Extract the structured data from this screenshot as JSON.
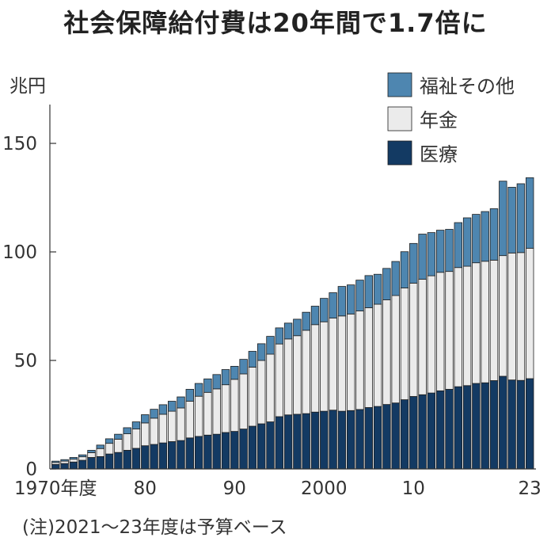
{
  "chart_data": {
    "type": "bar",
    "stacked": true,
    "title": "社会保障給付費は20年間で1.7倍に",
    "ylabel": "兆円",
    "ylim": [
      0,
      165
    ],
    "yticks": [
      0,
      50,
      100,
      150
    ],
    "x_tick_labels": [
      {
        "year": 1970,
        "label": "1970年度"
      },
      {
        "year": 1980,
        "label": "80"
      },
      {
        "year": 1990,
        "label": "90"
      },
      {
        "year": 2000,
        "label": "2000"
      },
      {
        "year": 2010,
        "label": "10"
      },
      {
        "year": 2023,
        "label": "23"
      }
    ],
    "x": [
      1970,
      1971,
      1972,
      1973,
      1974,
      1975,
      1976,
      1977,
      1978,
      1979,
      1980,
      1981,
      1982,
      1983,
      1984,
      1985,
      1986,
      1987,
      1988,
      1989,
      1990,
      1991,
      1992,
      1993,
      1994,
      1995,
      1996,
      1997,
      1998,
      1999,
      2000,
      2001,
      2002,
      2003,
      2004,
      2005,
      2006,
      2007,
      2008,
      2009,
      2010,
      2011,
      2012,
      2013,
      2014,
      2015,
      2016,
      2017,
      2018,
      2019,
      2020,
      2021,
      2022,
      2023
    ],
    "series": [
      {
        "name": "医療",
        "color": "#133a63",
        "values": [
          2.1,
          2.5,
          3.2,
          4.0,
          5.3,
          5.7,
          6.9,
          7.6,
          8.6,
          9.5,
          10.7,
          11.3,
          12.0,
          12.6,
          13.1,
          14.3,
          15.0,
          15.6,
          16.0,
          16.8,
          17.3,
          18.4,
          19.7,
          20.8,
          21.7,
          24.1,
          24.9,
          25.2,
          25.5,
          26.2,
          26.6,
          27.1,
          26.6,
          26.9,
          27.4,
          28.3,
          28.8,
          29.7,
          30.4,
          31.9,
          33.4,
          34.2,
          35.0,
          36.0,
          36.7,
          37.9,
          38.4,
          39.4,
          39.7,
          40.7,
          42.7,
          41.0,
          40.8,
          41.6
        ]
      },
      {
        "name": "年金",
        "color": "#ebebeb",
        "values": [
          0.9,
          1.1,
          1.3,
          1.6,
          2.2,
          3.7,
          4.9,
          6.1,
          7.6,
          8.9,
          10.5,
          12.1,
          13.2,
          14.0,
          15.0,
          16.9,
          18.5,
          19.7,
          20.9,
          22.0,
          24.0,
          25.4,
          27.2,
          29.2,
          31.2,
          33.5,
          35.0,
          36.2,
          38.4,
          40.3,
          41.2,
          42.4,
          43.9,
          44.5,
          45.4,
          46.0,
          47.1,
          48.2,
          49.5,
          51.5,
          52.2,
          53.2,
          54.0,
          54.6,
          54.3,
          54.9,
          55.0,
          55.6,
          56.0,
          55.5,
          55.6,
          58.5,
          58.9,
          60.1
        ]
      },
      {
        "name": "福祉その他",
        "color": "#4e86b0",
        "values": [
          0.6,
          0.7,
          0.8,
          0.9,
          1.1,
          1.6,
          2.1,
          2.3,
          2.8,
          3.3,
          3.8,
          4.1,
          4.4,
          4.6,
          5.1,
          5.5,
          5.9,
          6.2,
          6.6,
          7.0,
          6.0,
          6.7,
          7.3,
          7.7,
          8.2,
          7.4,
          7.3,
          7.6,
          8.3,
          8.5,
          10.8,
          11.7,
          13.6,
          13.4,
          14.2,
          14.8,
          13.8,
          14.5,
          15.7,
          16.7,
          18.3,
          20.8,
          19.9,
          19.4,
          19.4,
          20.7,
          22.3,
          22.3,
          22.9,
          23.7,
          34.3,
          30.3,
          31.7,
          32.5
        ]
      }
    ]
  },
  "note": "(注)2021〜23年度は予算ベース"
}
